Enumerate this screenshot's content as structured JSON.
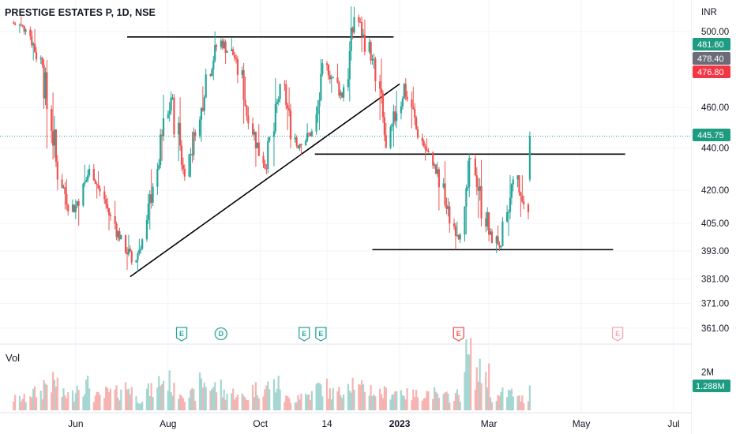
{
  "header": {
    "title": "PRESTIGE ESTATES P, 1D, NSE",
    "volume_label": "Vol"
  },
  "colors": {
    "up": "#26a69a",
    "down": "#ef5350",
    "up_volume": "#a5d6d1",
    "down_volume": "#f7b3b1",
    "drawing": "#000000",
    "grid": "#f0f3fa",
    "last_price_line": "#26a69a"
  },
  "chart_data": {
    "type": "candlestick",
    "symbol": "PRESTIGE ESTATES P",
    "interval": "1D",
    "exchange": "NSE",
    "currency_label": "INR",
    "y_scale": "log",
    "ylim": [
      356,
      514
    ],
    "y_ticks": [
      "500.00",
      "460.00",
      "440.00",
      "420.00",
      "405.00",
      "393.00",
      "381.00",
      "371.00",
      "361.00"
    ],
    "x_ticks": [
      "Jun",
      "Aug",
      "Oct",
      "14",
      "2023",
      "Mar",
      "May",
      "Jul"
    ],
    "x_tick_bold": [
      "2023"
    ],
    "grid": true,
    "price_badges": [
      {
        "value": "481.60",
        "kind": "up"
      },
      {
        "value": "478.40",
        "kind": "neutral"
      },
      {
        "value": "476.80",
        "kind": "down"
      },
      {
        "value": "445.75",
        "kind": "up"
      }
    ],
    "last_price": 445.75,
    "volume_panel": {
      "tick": "2M",
      "last_value": "1.288M"
    },
    "events": [
      {
        "letter": "E",
        "kind": "earnings",
        "date": "2022-08-10"
      },
      {
        "letter": "E",
        "kind": "earnings",
        "date": "2022-10-30"
      },
      {
        "letter": "D",
        "kind": "dividend",
        "date": "2022-09-05"
      },
      {
        "letter": "E",
        "kind": "earnings",
        "date": "2022-11-10"
      },
      {
        "letter": "E",
        "kind": "earnings_negative",
        "date": "2023-02-09"
      },
      {
        "letter": "E",
        "kind": "earnings_upcoming",
        "date": "2023-05-25"
      }
    ],
    "drawings": [
      {
        "type": "horizontal",
        "price": 497,
        "from": "2022-07-05",
        "to": "2022-12-28"
      },
      {
        "type": "trend",
        "from": [
          "2022-07-07",
          382
        ],
        "to": [
          "2023-01-01",
          472
        ]
      },
      {
        "type": "horizontal",
        "price": 437,
        "from": "2022-11-06",
        "to": "2023-05-30"
      },
      {
        "type": "horizontal",
        "price": 393.5,
        "from": "2022-12-14",
        "to": "2023-05-22"
      }
    ],
    "series": [
      {
        "name": "price",
        "points": [
          [
            "2022-04-21",
            505,
            512,
            497,
            501
          ],
          [
            "2022-05-01",
            501,
            505,
            478,
            482
          ],
          [
            "2022-05-11",
            482,
            485,
            420,
            425
          ],
          [
            "2022-05-21",
            425,
            428,
            405,
            410
          ],
          [
            "2022-06-01",
            410,
            432,
            402,
            430
          ],
          [
            "2022-06-11",
            430,
            433,
            412,
            416
          ],
          [
            "2022-06-21",
            416,
            418,
            395,
            398
          ],
          [
            "2022-07-01",
            398,
            400,
            378,
            388
          ],
          [
            "2022-07-10",
            388,
            400,
            384,
            398
          ],
          [
            "2022-07-18",
            398,
            435,
            396,
            430
          ],
          [
            "2022-07-26",
            430,
            468,
            428,
            465
          ],
          [
            "2022-08-04",
            465,
            468,
            425,
            430
          ],
          [
            "2022-08-12",
            430,
            450,
            414,
            446
          ],
          [
            "2022-08-20",
            446,
            480,
            443,
            477
          ],
          [
            "2022-08-28",
            477,
            500,
            474,
            495
          ],
          [
            "2022-09-06",
            495,
            500,
            480,
            485
          ],
          [
            "2022-09-16",
            485,
            488,
            448,
            452
          ],
          [
            "2022-09-26",
            452,
            455,
            425,
            430
          ],
          [
            "2022-10-06",
            430,
            475,
            428,
            472
          ],
          [
            "2022-10-16",
            472,
            474,
            438,
            441
          ],
          [
            "2022-10-26",
            441,
            452,
            436,
            448
          ],
          [
            "2022-11-05",
            448,
            485,
            446,
            482
          ],
          [
            "2022-11-15",
            482,
            484,
            460,
            465
          ],
          [
            "2022-11-25",
            465,
            514,
            463,
            508
          ],
          [
            "2022-12-05",
            508,
            510,
            482,
            485
          ],
          [
            "2022-12-15",
            485,
            488,
            435,
            440
          ],
          [
            "2022-12-25",
            440,
            476,
            438,
            472
          ],
          [
            "2023-01-05",
            472,
            475,
            440,
            445
          ],
          [
            "2023-01-15",
            445,
            448,
            430,
            432
          ],
          [
            "2023-01-25",
            432,
            435,
            400,
            405
          ],
          [
            "2023-02-04",
            405,
            412,
            392,
            400
          ],
          [
            "2023-02-12",
            400,
            438,
            397,
            435
          ],
          [
            "2023-02-20",
            435,
            437,
            396,
            400
          ],
          [
            "2023-03-02",
            400,
            408,
            392,
            395
          ],
          [
            "2023-03-10",
            395,
            428,
            393,
            425
          ],
          [
            "2023-03-18",
            425,
            427,
            395,
            410
          ],
          [
            "2023-03-28",
            410,
            448,
            408,
            445.75
          ]
        ]
      },
      {
        "name": "volume_millions",
        "points": [
          [
            "2022-04-21",
            0.6
          ],
          [
            "2022-05-01",
            0.9
          ],
          [
            "2022-05-11",
            1.4
          ],
          [
            "2022-05-21",
            0.8
          ],
          [
            "2022-06-01",
            1.3
          ],
          [
            "2022-06-11",
            0.7
          ],
          [
            "2022-06-21",
            0.9
          ],
          [
            "2022-07-01",
            1.2
          ],
          [
            "2022-07-10",
            0.6
          ],
          [
            "2022-07-18",
            1.0
          ],
          [
            "2022-07-26",
            1.5
          ],
          [
            "2022-08-04",
            1.0
          ],
          [
            "2022-08-12",
            0.8
          ],
          [
            "2022-08-20",
            1.4
          ],
          [
            "2022-08-28",
            1.2
          ],
          [
            "2022-09-06",
            0.9
          ],
          [
            "2022-09-16",
            0.7
          ],
          [
            "2022-09-26",
            1.1
          ],
          [
            "2022-10-06",
            1.3
          ],
          [
            "2022-10-16",
            0.6
          ],
          [
            "2022-10-26",
            0.8
          ],
          [
            "2022-11-05",
            1.2
          ],
          [
            "2022-11-15",
            0.9
          ],
          [
            "2022-11-25",
            1.5
          ],
          [
            "2022-12-05",
            1.1
          ],
          [
            "2022-12-15",
            0.9
          ],
          [
            "2022-12-25",
            1.0
          ],
          [
            "2023-01-05",
            0.8
          ],
          [
            "2023-01-15",
            0.9
          ],
          [
            "2023-01-25",
            0.7
          ],
          [
            "2023-02-04",
            0.8
          ],
          [
            "2023-02-12",
            2.7
          ],
          [
            "2023-02-20",
            1.9
          ],
          [
            "2023-03-02",
            0.7
          ],
          [
            "2023-03-10",
            0.9
          ],
          [
            "2023-03-18",
            0.6
          ],
          [
            "2023-03-28",
            1.288
          ]
        ]
      }
    ]
  }
}
